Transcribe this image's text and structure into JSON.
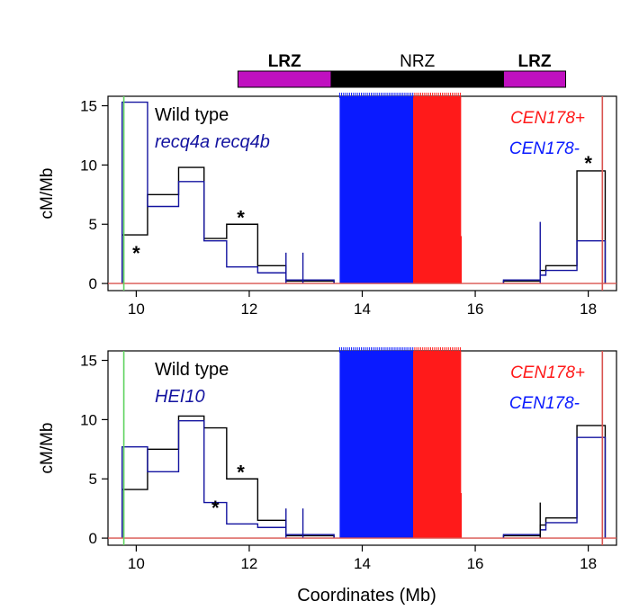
{
  "chart_data": [
    {
      "type": "line",
      "panel": "top",
      "xlabel": "",
      "ylabel": "cM/Mb",
      "xlim": [
        9.5,
        18.5
      ],
      "ylim": [
        -0.6,
        15.8
      ],
      "x_ticks": [
        10,
        12,
        14,
        16,
        18
      ],
      "x_tick_labels": [
        "10",
        "12",
        "14",
        "16",
        "18"
      ],
      "y_ticks": [
        0,
        5,
        10,
        15
      ],
      "y_tick_labels": [
        "0",
        "5",
        "10",
        "15"
      ],
      "legend": {
        "wt": "Wild type",
        "mutant": "recq4a recq4b",
        "cen_plus": "CEN178+",
        "cen_minus": "CEN178-"
      },
      "colors": {
        "wt": "#000000",
        "mutant": "#1414a0",
        "cen_plus": "#ff1a1a",
        "cen_minus": "#0a1aff",
        "boundary_left": "#5fd35f",
        "boundary_right": "#d9534f",
        "baseline": "#d9534f"
      },
      "series": [
        {
          "name": "Wild type",
          "step_edges": [
            9.75,
            10.2,
            10.75,
            11.2,
            11.6,
            12.15,
            12.65,
            13.5
          ],
          "values": [
            4.1,
            7.5,
            9.8,
            3.8,
            5.0,
            1.5,
            0.2
          ]
        },
        {
          "name": "recq4a recq4b",
          "step_edges": [
            9.75,
            10.2,
            10.75,
            11.2,
            11.6,
            12.15,
            12.65,
            13.5
          ],
          "values": [
            15.3,
            6.5,
            8.6,
            3.6,
            1.4,
            0.9,
            0.3
          ]
        },
        {
          "name": "Wild type (right arm)",
          "step_edges": [
            16.5,
            17.15,
            17.25,
            17.8,
            18.3
          ],
          "values": [
            0.2,
            1.1,
            1.5,
            9.5
          ]
        },
        {
          "name": "recq4a recq4b (right arm)",
          "step_edges": [
            16.5,
            17.15,
            17.25,
            17.8,
            18.3
          ],
          "values": [
            0.3,
            0.7,
            1.1,
            3.6
          ]
        }
      ],
      "spikes": [
        {
          "x": 12.65,
          "y": 2.6,
          "series": "recq4a recq4b"
        },
        {
          "x": 12.95,
          "y": 2.6,
          "series": "recq4a recq4b"
        },
        {
          "x": 17.15,
          "y": 5.2,
          "series": "recq4a recq4b"
        },
        {
          "x": 15.75,
          "y": 4.0,
          "series": "CEN178+"
        }
      ],
      "cen_plus_range": [
        14.9,
        15.75
      ],
      "cen_minus_range": [
        13.6,
        14.9
      ],
      "cen_height": 15.8,
      "centromere_boundaries": [
        9.78,
        18.25
      ],
      "annotations": [
        {
          "text": "*",
          "x": 10.0,
          "y": 2.6
        },
        {
          "text": "*",
          "x": 11.85,
          "y": 5.6
        },
        {
          "text": "*",
          "x": 18.0,
          "y": 10.2
        }
      ]
    },
    {
      "type": "line",
      "panel": "bottom",
      "xlabel": "Coordinates (Mb)",
      "ylabel": "cM/Mb",
      "xlim": [
        9.5,
        18.5
      ],
      "ylim": [
        -0.6,
        15.8
      ],
      "x_ticks": [
        10,
        12,
        14,
        16,
        18
      ],
      "x_tick_labels": [
        "10",
        "12",
        "14",
        "16",
        "18"
      ],
      "y_ticks": [
        0,
        5,
        10,
        15
      ],
      "y_tick_labels": [
        "0",
        "5",
        "10",
        "15"
      ],
      "legend": {
        "wt": "Wild type",
        "mutant": "HEI10",
        "cen_plus": "CEN178+",
        "cen_minus": "CEN178-"
      },
      "colors": {
        "wt": "#000000",
        "mutant": "#1414a0",
        "cen_plus": "#ff1a1a",
        "cen_minus": "#0a1aff",
        "boundary_left": "#5fd35f",
        "boundary_right": "#d9534f",
        "baseline": "#d9534f"
      },
      "series": [
        {
          "name": "Wild type",
          "step_edges": [
            9.75,
            10.2,
            10.75,
            11.2,
            11.6,
            12.15,
            12.65,
            13.5
          ],
          "values": [
            4.1,
            7.5,
            10.3,
            9.3,
            5.0,
            1.5,
            0.2
          ]
        },
        {
          "name": "HEI10",
          "step_edges": [
            9.75,
            10.2,
            10.75,
            11.2,
            11.6,
            12.15,
            12.65,
            13.5
          ],
          "values": [
            7.7,
            5.6,
            9.9,
            3.0,
            1.2,
            0.9,
            0.3
          ]
        },
        {
          "name": "Wild type (right arm)",
          "step_edges": [
            16.5,
            17.15,
            17.25,
            17.8,
            18.3
          ],
          "values": [
            0.2,
            1.1,
            1.7,
            9.5
          ]
        },
        {
          "name": "HEI10 (right arm)",
          "step_edges": [
            16.5,
            17.15,
            17.25,
            17.8,
            18.3
          ],
          "values": [
            0.3,
            0.7,
            1.3,
            8.5
          ]
        }
      ],
      "spikes": [
        {
          "x": 12.65,
          "y": 2.5,
          "series": "HEI10"
        },
        {
          "x": 12.95,
          "y": 2.5,
          "series": "HEI10"
        },
        {
          "x": 17.15,
          "y": 3.0,
          "series": "Wild type"
        },
        {
          "x": 15.75,
          "y": 3.8,
          "series": "CEN178+"
        }
      ],
      "cen_plus_range": [
        14.9,
        15.75
      ],
      "cen_minus_range": [
        13.6,
        14.9
      ],
      "cen_height": 15.8,
      "centromere_boundaries": [
        9.78,
        18.25
      ],
      "annotations": [
        {
          "text": "*",
          "x": 11.4,
          "y": 2.6
        },
        {
          "text": "*",
          "x": 11.85,
          "y": 5.6
        }
      ]
    }
  ],
  "region_bar": {
    "segments": [
      {
        "label": "LRZ",
        "start": 11.8,
        "end": 13.45,
        "color": "#c010c0",
        "bold": true
      },
      {
        "label": "NRZ",
        "start": 13.45,
        "end": 16.5,
        "color": "#000000",
        "bold": false
      },
      {
        "label": "LRZ",
        "start": 16.5,
        "end": 17.6,
        "color": "#c010c0",
        "bold": true
      }
    ]
  }
}
